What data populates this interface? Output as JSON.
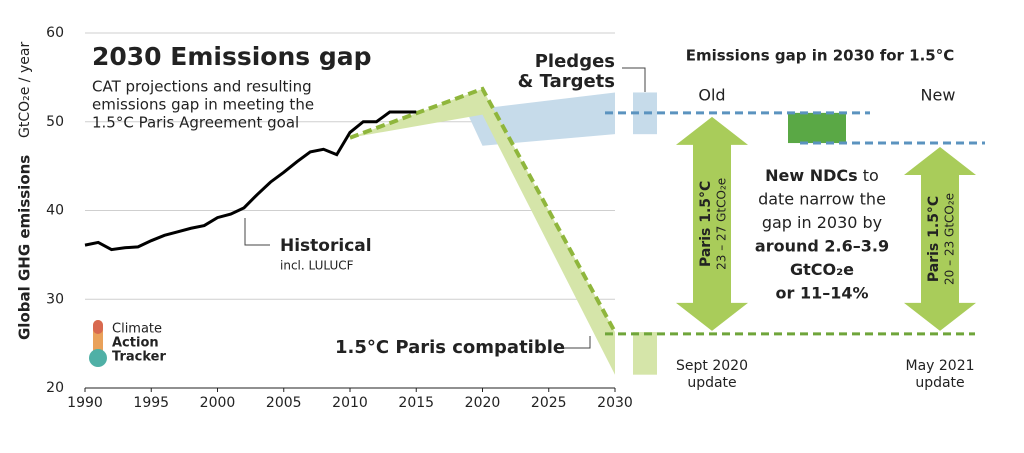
{
  "chart_data": {
    "type": "line",
    "title": "2030 Emissions gap",
    "subtitle": [
      "CAT projections and resulting",
      "emissions gap in meeting the",
      "1.5°C Paris Agreement goal"
    ],
    "ylabel": "Global GHG  emissions",
    "yunit": "GtCO₂e / year",
    "xlim": [
      1990,
      2030
    ],
    "ylim": [
      20,
      60
    ],
    "xticks": [
      1990,
      1995,
      2000,
      2005,
      2010,
      2015,
      2020,
      2025,
      2030
    ],
    "yticks": [
      20,
      30,
      40,
      50,
      60
    ],
    "grid": true,
    "series": [
      {
        "name": "Historical",
        "note": "incl. LULUCF",
        "color": "#000000",
        "x": [
          1990,
          1991,
          1992,
          1993,
          1994,
          1995,
          1996,
          1997,
          1998,
          1999,
          2000,
          2001,
          2002,
          2003,
          2004,
          2005,
          2006,
          2007,
          2008,
          2009,
          2010,
          2011,
          2012,
          2013,
          2014,
          2015
        ],
        "values": [
          36.1,
          36.4,
          35.6,
          35.8,
          35.9,
          36.6,
          37.2,
          37.6,
          38.0,
          38.3,
          39.2,
          39.6,
          40.3,
          41.8,
          43.2,
          44.3,
          45.5,
          46.6,
          46.9,
          46.3,
          48.8,
          50.0,
          50.0,
          51.1,
          51.1,
          51.1
        ]
      },
      {
        "name": "1.5°C Paris compatible",
        "color": "#8fb63c",
        "band_color": "#d5e5a9",
        "x": [
          2010,
          2020,
          2030
        ],
        "values": [
          48.2,
          53.7,
          26.3
        ],
        "low": [
          48.2,
          50.8,
          21.5
        ]
      },
      {
        "name": "Pledges\n& Targets",
        "color": "#a8cde3",
        "band_color": "#c6dbea",
        "x": [
          2019,
          2020,
          2030
        ],
        "high": [
          51.2,
          51.5,
          53.3
        ],
        "low": [
          50.5,
          47.3,
          48.6
        ]
      }
    ]
  },
  "gap_panel": {
    "title": "Emissions gap in 2030 for 1.5°C",
    "old": {
      "label": "Old",
      "level": 51.0,
      "arrow_label": "Paris 1.5°C",
      "arrow_range": "23 – 27 GtCO₂e",
      "footer": [
        "Sept 2020",
        "update"
      ]
    },
    "new": {
      "label": "New",
      "level": 47.6,
      "arrow_label": "Paris 1.5°C",
      "arrow_range": "20 – 23 GtCO₂e",
      "footer": [
        "May 2021",
        "update"
      ]
    },
    "paris_level": 26.1,
    "text": [
      [
        [
          "New NDCs",
          true
        ],
        [
          " to",
          false
        ]
      ],
      [
        [
          "date narrow the",
          false
        ]
      ],
      [
        [
          "gap in 2030 by",
          false
        ]
      ],
      [
        [
          "around 2.6–3.9",
          true
        ]
      ],
      [
        [
          "GtCO₂e",
          true
        ]
      ],
      [
        [
          "or 11–14%",
          true
        ]
      ]
    ]
  },
  "logo": [
    "Climate",
    "Action",
    "Tracker"
  ]
}
